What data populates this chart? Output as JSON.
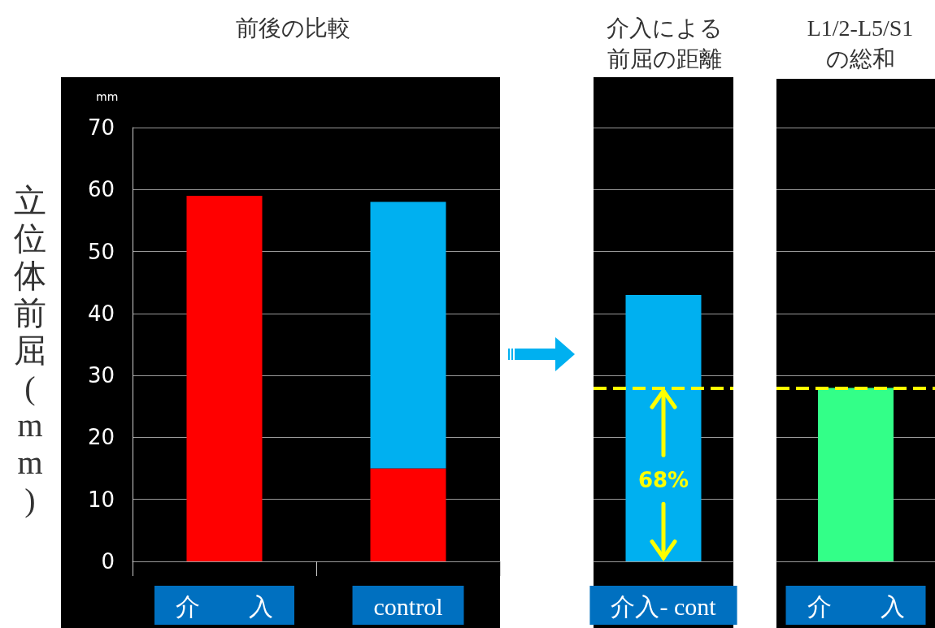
{
  "chart_data": [
    {
      "type": "bar",
      "title": "前後の比較",
      "ylabel": "立位体前屈(mm)",
      "categories": [
        "介　　入",
        "control"
      ],
      "stacked": true,
      "series": [
        {
          "color": "#ff0000",
          "values": [
            59,
            15
          ]
        },
        {
          "color": "#00b0f0",
          "values": [
            null,
            43
          ]
        }
      ],
      "ylim": [
        0,
        70
      ],
      "yticks": [
        0,
        10,
        20,
        30,
        40,
        50,
        60,
        70
      ],
      "grid": "y",
      "annotations": [
        "mm"
      ]
    },
    {
      "type": "bar",
      "title": "介入による前屈の距離",
      "categories": [
        "介入- cont"
      ],
      "values": [
        43
      ],
      "color": "#00b0f0",
      "ylim": [
        0,
        70
      ],
      "yticks": [
        0,
        10,
        20,
        30,
        40,
        50,
        60,
        70
      ],
      "grid": "y",
      "tick_labels": "x",
      "ref_lines": [
        {
          "axis": "y",
          "value": 28,
          "color": "#ffff00",
          "line_style": "dashed"
        }
      ],
      "annotations": [
        "68%"
      ]
    },
    {
      "type": "bar",
      "title": "L1/2-L5/S1\nの総和",
      "categories": [
        "介　　入"
      ],
      "values": [
        28
      ],
      "color": "#33ff88",
      "ylim": [
        0,
        70
      ],
      "yticks": [
        0,
        10,
        20,
        30,
        40,
        50,
        60,
        70
      ],
      "grid": "y",
      "tick_labels": "x",
      "ref_lines": [
        {
          "axis": "y",
          "value": 28,
          "color": "#ffff00",
          "line_style": "dashed"
        }
      ]
    }
  ]
}
